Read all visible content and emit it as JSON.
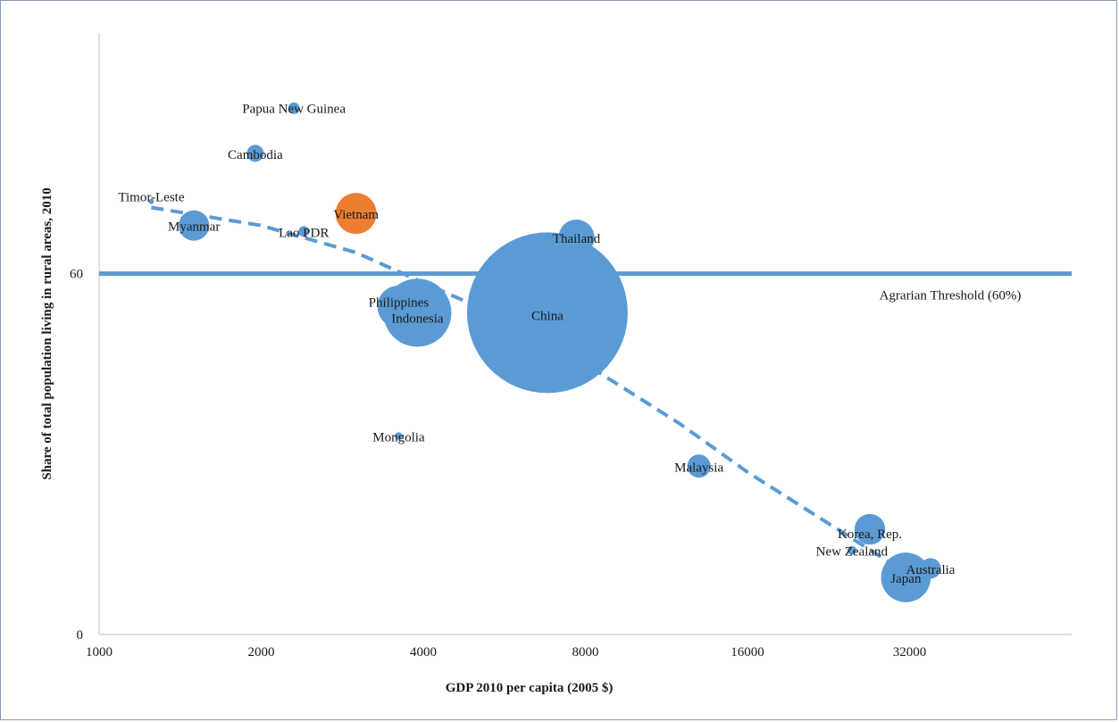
{
  "chart_data": {
    "type": "scatter",
    "subtype": "bubble",
    "xlabel": "GDP 2010 per capita (2005 $)",
    "ylabel": "Share of total population living in rural areas, 2010",
    "x_scale": "log2",
    "xlim": [
      1000,
      64000
    ],
    "ylim": [
      0,
      100
    ],
    "x_ticks": [
      1000,
      2000,
      4000,
      8000,
      16000,
      32000
    ],
    "y_ticks": [
      0,
      60
    ],
    "grid": false,
    "legend": "none",
    "colors": {
      "default": "#5b9bd5",
      "highlight": "#ed7d31"
    },
    "reference_line": {
      "y": 60,
      "label": "Agrarian Threshold (60%)",
      "color": "#5b9bd5"
    },
    "trendline": {
      "style": "dashed",
      "color": "#5b9bd5",
      "points": [
        [
          1250,
          71
        ],
        [
          2000,
          68
        ],
        [
          3000,
          63.5
        ],
        [
          4000,
          58.5
        ],
        [
          5500,
          53
        ],
        [
          8000,
          45
        ],
        [
          12000,
          35
        ],
        [
          16000,
          27
        ],
        [
          24000,
          17
        ],
        [
          30000,
          11.5
        ]
      ]
    },
    "points": [
      {
        "name": "Papua New Guinea",
        "x": 2300,
        "y": 87.5,
        "size": 7,
        "highlight": false
      },
      {
        "name": "Cambodia",
        "x": 1950,
        "y": 80,
        "size": 15,
        "highlight": false
      },
      {
        "name": "Timor-Leste",
        "x": 1250,
        "y": 72,
        "size": 1,
        "highlight": false
      },
      {
        "name": "Vietnam",
        "x": 3000,
        "y": 70,
        "size": 87,
        "highlight": true
      },
      {
        "name": "Myanmar",
        "x": 1500,
        "y": 68,
        "size": 48,
        "highlight": false
      },
      {
        "name": "Lao PDR",
        "x": 2400,
        "y": 67,
        "size": 6,
        "highlight": false
      },
      {
        "name": "Thailand",
        "x": 7700,
        "y": 66,
        "size": 67,
        "highlight": false
      },
      {
        "name": "Philippines",
        "x": 3600,
        "y": 54.5,
        "size": 93,
        "highlight": false
      },
      {
        "name": "Indonesia",
        "x": 3900,
        "y": 53.5,
        "size": 240,
        "highlight": false
      },
      {
        "name": "China",
        "x": 6800,
        "y": 53.5,
        "size": 1340,
        "highlight": false
      },
      {
        "name": "Mongolia",
        "x": 3600,
        "y": 33,
        "size": 3,
        "highlight": false
      },
      {
        "name": "Malaysia",
        "x": 13000,
        "y": 28,
        "size": 28,
        "highlight": false
      },
      {
        "name": "Korea, Rep.",
        "x": 27000,
        "y": 17.5,
        "size": 49,
        "highlight": false
      },
      {
        "name": "New Zealand",
        "x": 25000,
        "y": 14,
        "size": 4,
        "highlight": false
      },
      {
        "name": "Australia",
        "x": 35000,
        "y": 11,
        "size": 22,
        "highlight": false
      },
      {
        "name": "Japan",
        "x": 31500,
        "y": 9.5,
        "size": 128,
        "highlight": false
      }
    ]
  }
}
